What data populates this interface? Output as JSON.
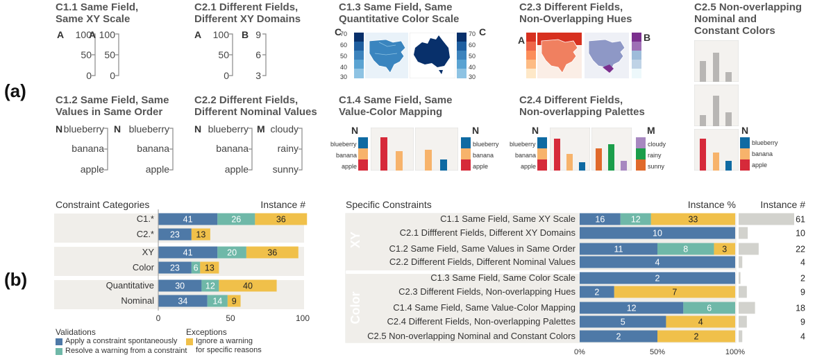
{
  "panel_labels": {
    "a": "(a)",
    "b": "(b)"
  },
  "top": {
    "c11": {
      "title": [
        "C1.1 Same Field,",
        "Same XY Scale"
      ],
      "axes": [
        {
          "letter": "A",
          "ticks": [
            "100",
            "50",
            "0"
          ]
        },
        {
          "letter": "A",
          "ticks": [
            "100",
            "50",
            "0"
          ]
        }
      ]
    },
    "c21": {
      "title": [
        "C2.1 Different Fields,",
        "Different XY Domains"
      ],
      "axes": [
        {
          "letter": "A",
          "ticks": [
            "100",
            "50",
            "0"
          ]
        },
        {
          "letter": "B",
          "ticks": [
            "9",
            "6",
            "3"
          ]
        }
      ]
    },
    "c13": {
      "title": [
        "C1.3 Same Field, Same",
        "Quantitative Color Scale"
      ],
      "letter": "C",
      "ticks": [
        "70",
        "60",
        "50",
        "40",
        "30"
      ]
    },
    "c23": {
      "title": [
        "C2.3 Different Fields,",
        "Non-Overlapping Hues"
      ],
      "letters": [
        "A",
        "B"
      ]
    },
    "c25": {
      "title": [
        "C2.5 Non-overlapping",
        "Nominal and",
        "Constant Colors"
      ],
      "letter": "N",
      "legend": [
        "blueberry",
        "banana",
        "apple"
      ]
    },
    "c12": {
      "title": [
        "C1.2 Same Field, Same",
        "Values in Same Order"
      ],
      "axes": [
        {
          "letter": "N",
          "ticks": [
            "blueberry",
            "banana",
            "apple"
          ]
        },
        {
          "letter": "N",
          "ticks": [
            "blueberry",
            "banana",
            "apple"
          ]
        }
      ]
    },
    "c22": {
      "title": [
        "C2.2 Different Fields,",
        "Different Nominal Values"
      ],
      "axes": [
        {
          "letter": "N",
          "ticks": [
            "blueberry",
            "banana",
            "apple"
          ]
        },
        {
          "letter": "M",
          "ticks": [
            "cloudy",
            "rainy",
            "sunny"
          ]
        }
      ]
    },
    "c14": {
      "title": [
        "C1.4 Same Field, Same",
        "Value-Color Mapping"
      ],
      "letter": "N",
      "legend": [
        "blueberry",
        "banana",
        "apple"
      ]
    },
    "c24": {
      "title": [
        "C2.4 Different Fields,",
        "Non-overlapping Palettes"
      ],
      "letters": [
        "N",
        "M"
      ],
      "legend_n": [
        "blueberry",
        "banana",
        "apple"
      ],
      "legend_m": [
        "cloudy",
        "rainy",
        "sunny"
      ]
    }
  },
  "colors": {
    "spontaneous": "#4e79a7",
    "resolve": "#6fb8a8",
    "ignore": "#f0c04a",
    "total": "#d2d2cd",
    "band": "#f0eeea",
    "blueberry": "#0f6aa2",
    "banana": "#f7b36b",
    "apple": "#d62a3a",
    "cloudy": "#a788c0",
    "rainy": "#1b9e4b",
    "sunny": "#e06a2c"
  },
  "chart_data": [
    {
      "type": "bar",
      "title": "Constraint Categories",
      "value_header": "Instance #",
      "categories": [
        "C1.*",
        "C2.*",
        "XY",
        "Color",
        "Quantitative",
        "Nominal"
      ],
      "groups": [
        [
          0,
          1
        ],
        [
          2,
          3
        ],
        [
          4,
          5
        ]
      ],
      "series": [
        {
          "name": "Apply a constraint spontaneously",
          "values": [
            41,
            23,
            41,
            23,
            30,
            34
          ]
        },
        {
          "name": "Resolve a warning from a constraint",
          "values": [
            26,
            0,
            20,
            6,
            12,
            14
          ]
        },
        {
          "name": "Ignore a warning for specific reasons",
          "values": [
            36,
            13,
            36,
            13,
            40,
            9
          ]
        }
      ],
      "xlim": [
        0,
        100
      ],
      "xticks": [
        0,
        50,
        100
      ],
      "legend": {
        "validations_title": "Validations",
        "exceptions_title": "Exceptions",
        "spontaneous": "Apply a constraint spontaneously",
        "resolve": "Resolve a warning from a constraint",
        "ignore_line1": "Ignore a warning",
        "ignore_line2": "for specific reasons"
      }
    },
    {
      "type": "bar",
      "title": "Specific Constraints",
      "percent_header": "Instance %",
      "count_header": "Instance #",
      "group_labels": [
        "XY",
        "Color"
      ],
      "categories": [
        "C1.1 Same Field, Same XY Scale",
        "C2.1 Diffferent Fields, Different XY Domains",
        "C1.2 Same Field, Same Values in Same Order",
        "C2.2 Different Fields, Different Nominal Values",
        "C1.3 Same Field, Same Color Scale",
        "C2.3 Different Fields, Non-overlapping Hues",
        "C1.4 Same Field, Same Value-Color Mapping",
        "C2.4 Different Fields, Non-overlapping Palettes",
        "C2.5 Non-overlapping Nominal and Constant Colors"
      ],
      "series": [
        {
          "name": "Apply a constraint spontaneously",
          "values": [
            16,
            10,
            11,
            4,
            2,
            2,
            12,
            5,
            2
          ]
        },
        {
          "name": "Resolve a warning from a constraint",
          "values": [
            12,
            0,
            8,
            0,
            0,
            0,
            6,
            0,
            0
          ]
        },
        {
          "name": "Ignore a warning for specific reasons",
          "values": [
            33,
            0,
            3,
            0,
            0,
            7,
            0,
            4,
            2
          ]
        }
      ],
      "totals": [
        61,
        10,
        22,
        4,
        2,
        9,
        18,
        9,
        4
      ],
      "xticks": [
        "0%",
        "50%",
        "100%"
      ]
    }
  ]
}
